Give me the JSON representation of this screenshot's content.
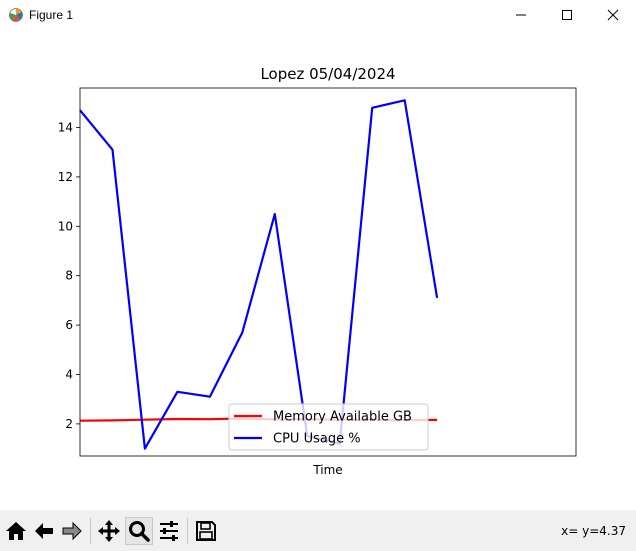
{
  "window": {
    "title": "Figure 1",
    "controls": [
      "minimize",
      "maximize",
      "close"
    ]
  },
  "chart_data": {
    "type": "line",
    "title": "Lopez 05/04/2024",
    "xlabel": "Time",
    "ylabel": "",
    "x_ticks_visible": false,
    "ylim": [
      0.7,
      15.6
    ],
    "y_ticks": [
      2,
      4,
      6,
      8,
      10,
      12,
      14
    ],
    "x": [
      0,
      1,
      2,
      3,
      4,
      5,
      6,
      7,
      8,
      9,
      10,
      11
    ],
    "series": [
      {
        "name": "Memory Available GB",
        "color": "#ff0000",
        "values": [
          2.13,
          2.14,
          2.17,
          2.2,
          2.19,
          2.22,
          2.18,
          2.18,
          2.17,
          2.16,
          2.15,
          2.16
        ]
      },
      {
        "name": "CPU Usage %",
        "color": "#0000ff",
        "values": [
          14.7,
          13.1,
          1.0,
          3.3,
          3.1,
          5.7,
          10.5,
          1.5,
          1.2,
          14.8,
          15.1,
          7.1
        ]
      }
    ],
    "legend_position": "lower-center",
    "grid": false
  },
  "toolbar": {
    "buttons": [
      {
        "id": "home",
        "icon": "home-icon"
      },
      {
        "id": "back",
        "icon": "arrow-left-icon"
      },
      {
        "id": "forward",
        "icon": "arrow-right-icon"
      },
      {
        "id": "pan",
        "icon": "move-icon"
      },
      {
        "id": "zoom",
        "icon": "magnifier-icon"
      },
      {
        "id": "subplots",
        "icon": "sliders-icon"
      },
      {
        "id": "save",
        "icon": "save-icon"
      }
    ],
    "coordinates": "x= y=4.37"
  }
}
